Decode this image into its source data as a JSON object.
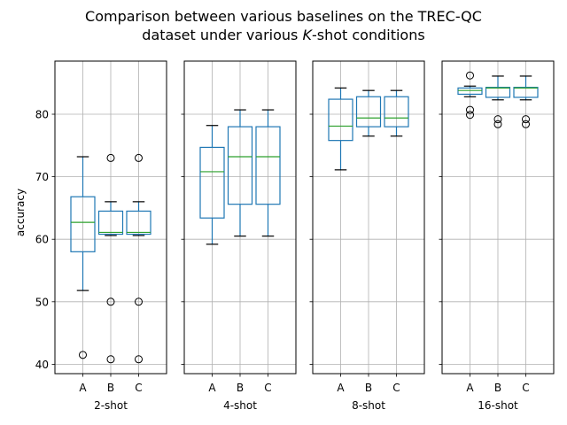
{
  "chart_data": {
    "type": "boxplot",
    "title_line1": "Comparison between various baselines on the TREC-QC",
    "title_line2_pre": "dataset under various ",
    "title_line2_k": "K",
    "title_line2_post": "-shot conditions",
    "ylabel": "accuracy",
    "ylim": [
      38.5,
      88.5
    ],
    "yticks": [
      "40",
      "50",
      "60",
      "70",
      "80"
    ],
    "ytick_values": [
      40,
      50,
      60,
      70,
      80
    ],
    "categories": [
      "A",
      "B",
      "C"
    ],
    "grid": true,
    "colors": {
      "box": "#1f77b4",
      "median": "#2ca02c",
      "grid": "#b0b0b0"
    },
    "panels": [
      {
        "xlabel": "2-shot",
        "boxes": [
          {
            "category": "A",
            "whisker_low": 51.8,
            "q1": 58.0,
            "median": 62.7,
            "q3": 66.8,
            "whisker_high": 73.2,
            "outliers": [
              41.5
            ]
          },
          {
            "category": "B",
            "whisker_low": 60.6,
            "q1": 60.8,
            "median": 61.1,
            "q3": 64.5,
            "whisker_high": 66.0,
            "outliers": [
              73.0,
              50.0,
              40.8
            ]
          },
          {
            "category": "C",
            "whisker_low": 60.6,
            "q1": 60.8,
            "median": 61.1,
            "q3": 64.5,
            "whisker_high": 66.0,
            "outliers": [
              73.0,
              50.0,
              40.8
            ]
          }
        ]
      },
      {
        "xlabel": "4-shot",
        "boxes": [
          {
            "category": "A",
            "whisker_low": 59.2,
            "q1": 63.4,
            "median": 70.8,
            "q3": 74.7,
            "whisker_high": 78.2,
            "outliers": []
          },
          {
            "category": "B",
            "whisker_low": 60.5,
            "q1": 65.6,
            "median": 73.2,
            "q3": 78.0,
            "whisker_high": 80.7,
            "outliers": []
          },
          {
            "category": "C",
            "whisker_low": 60.5,
            "q1": 65.6,
            "median": 73.2,
            "q3": 78.0,
            "whisker_high": 80.7,
            "outliers": []
          }
        ]
      },
      {
        "xlabel": "8-shot",
        "boxes": [
          {
            "category": "A",
            "whisker_low": 71.1,
            "q1": 75.8,
            "median": 78.1,
            "q3": 82.4,
            "whisker_high": 84.2,
            "outliers": []
          },
          {
            "category": "B",
            "whisker_low": 76.5,
            "q1": 78.0,
            "median": 79.4,
            "q3": 82.8,
            "whisker_high": 83.8,
            "outliers": []
          },
          {
            "category": "C",
            "whisker_low": 76.5,
            "q1": 78.0,
            "median": 79.4,
            "q3": 82.8,
            "whisker_high": 83.8,
            "outliers": []
          }
        ]
      },
      {
        "xlabel": "16-shot",
        "boxes": [
          {
            "category": "A",
            "whisker_low": 82.8,
            "q1": 83.2,
            "median": 83.8,
            "q3": 84.2,
            "whisker_high": 84.5,
            "outliers": [
              86.2,
              80.7,
              79.9
            ]
          },
          {
            "category": "B",
            "whisker_low": 82.3,
            "q1": 82.7,
            "median": 84.2,
            "q3": 84.3,
            "whisker_high": 86.1,
            "outliers": [
              79.2,
              78.4
            ]
          },
          {
            "category": "C",
            "whisker_low": 82.3,
            "q1": 82.7,
            "median": 84.2,
            "q3": 84.3,
            "whisker_high": 86.1,
            "outliers": [
              79.2,
              78.4
            ]
          }
        ]
      }
    ]
  }
}
